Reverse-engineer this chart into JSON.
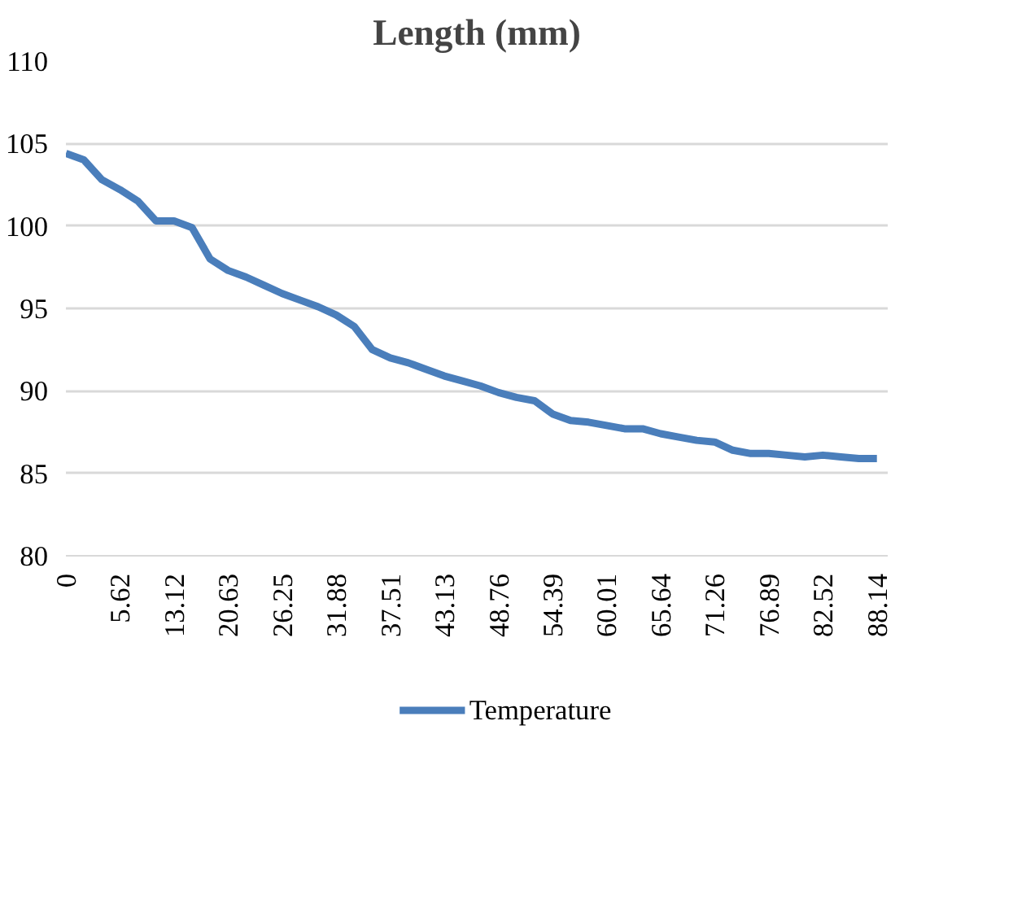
{
  "chart_data": {
    "type": "line",
    "title": "Length (mm)",
    "categories": [
      "0",
      null,
      null,
      "5.62",
      null,
      null,
      "13.12",
      null,
      null,
      "20.63",
      null,
      null,
      "26.25",
      null,
      null,
      "31.88",
      null,
      null,
      "37.51",
      null,
      null,
      "43.13",
      null,
      null,
      "48.76",
      null,
      null,
      "54.39",
      null,
      null,
      "60.01",
      null,
      null,
      "65.64",
      null,
      null,
      "71.26",
      null,
      null,
      "76.89",
      null,
      null,
      "82.52",
      null,
      null,
      "88.14"
    ],
    "series": [
      {
        "name": "Temperature",
        "color": "#4a7ebb",
        "values": [
          104.4,
          104.0,
          102.8,
          102.2,
          101.5,
          100.3,
          100.3,
          99.9,
          98.0,
          97.3,
          96.9,
          96.4,
          95.9,
          95.5,
          95.1,
          94.6,
          93.9,
          92.5,
          92.0,
          91.7,
          91.3,
          90.9,
          90.6,
          90.3,
          89.9,
          89.6,
          89.4,
          88.6,
          88.2,
          88.1,
          87.9,
          87.7,
          87.7,
          87.4,
          87.2,
          87.0,
          86.9,
          86.4,
          86.2,
          86.2,
          86.1,
          86.0,
          86.1,
          86.0,
          85.9,
          85.9
        ]
      }
    ],
    "ylim": [
      80,
      110
    ],
    "yticks": [
      80,
      85,
      90,
      95,
      100,
      105,
      110
    ],
    "grid": "y",
    "legend": "bottom",
    "marker": "none",
    "line_style": "solid"
  }
}
